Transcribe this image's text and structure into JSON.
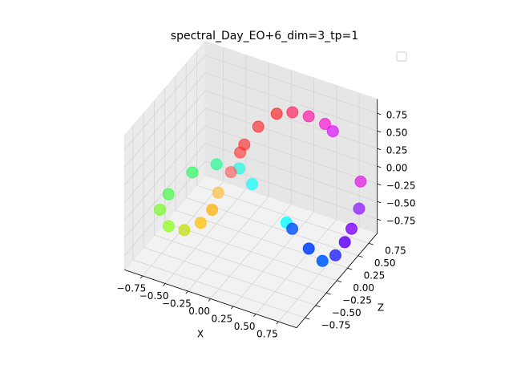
{
  "chart_data": {
    "type": "scatter3d",
    "title": "spectral_Day_EO+6_dim=3_tp=1",
    "xlabel": "X",
    "ylabel": "Z",
    "xlim": [
      -0.95,
      0.95
    ],
    "ylim": [
      -0.95,
      0.95
    ],
    "zlim": [
      -0.95,
      0.95
    ],
    "xticks": [
      {
        "value": -0.75,
        "label": "−0.75"
      },
      {
        "value": -0.5,
        "label": "−0.50"
      },
      {
        "value": -0.25,
        "label": "−0.25"
      },
      {
        "value": 0,
        "label": "0.00"
      },
      0.25,
      {
        "value": 0.5,
        "label": "0.50"
      },
      0.75
    ],
    "yticks": [
      {
        "value": -0.75,
        "label": "−0.75"
      },
      {
        "value": -0.5,
        "label": "−0.50"
      },
      {
        "value": -0.25,
        "label": "−0.25"
      },
      {
        "value": 0,
        "label": "0.00"
      },
      0.25,
      {
        "value": 0.5,
        "label": "0.50"
      },
      0.75
    ],
    "zticks": [
      {
        "value": -0.75,
        "label": "−0.75"
      },
      {
        "value": -0.5,
        "label": "−0.50"
      },
      {
        "value": -0.25,
        "label": "−0.25"
      },
      {
        "value": 0,
        "label": "0.00"
      },
      0.25,
      {
        "value": 0.5,
        "label": "0.50"
      },
      0.75
    ],
    "grid": true,
    "x": [
      -0.26,
      -0.26,
      -0.2,
      -0.09,
      0.06,
      0.24,
      0.42,
      0.53,
      0.93,
      0.96,
      0.97,
      0.99,
      0.98,
      0.93,
      0.78,
      0.55,
      0.44,
      -0.08,
      -0.27,
      -0.52,
      -0.74,
      -0.91,
      -0.91,
      -0.72,
      -0.5,
      -0.32,
      -0.24,
      -0.22,
      -0.22
    ],
    "y": [
      0.3,
      0.4,
      0.6,
      0.8,
      0.85,
      0.85,
      0.85,
      0.8,
      0.6,
      0.5,
      0.3,
      0.1,
      -0.1,
      -0.3,
      -0.3,
      -0.2,
      -0.1,
      0.2,
      0.3,
      0.3,
      0.2,
      0.0,
      -0.2,
      -0.4,
      -0.5,
      -0.5,
      -0.4,
      -0.3,
      0.0
    ],
    "z": [
      0.13,
      0.17,
      0.31,
      0.4,
      0.45,
      0.47,
      0.44,
      0.42,
      0.02,
      -0.28,
      -0.42,
      -0.46,
      -0.51,
      -0.47,
      -0.36,
      -0.25,
      -0.28,
      -0.17,
      -0.1,
      -0.15,
      -0.29,
      -0.53,
      -0.61,
      -0.62,
      -0.51,
      -0.33,
      -0.18,
      0.0,
      0.08
    ],
    "colors": [
      "#ff3030",
      "#ff2020",
      "#ff1010",
      "#ff0000",
      "#ff0040",
      "#ff00a0",
      "#ff00d0",
      "#e000ff",
      "#e020e0",
      "#9020ff",
      "#8000ff",
      "#6000ff",
      "#3030ff",
      "#0060ff",
      "#0040ff",
      "#0050ff",
      "#00ffff",
      "#00ffff",
      "#00ffe0",
      "#00ff80",
      "#00ff40",
      "#20ff20",
      "#60ff00",
      "#80ff00",
      "#c0e000",
      "#ffc000",
      "#ffb000",
      "#ffc040",
      "#ff6060"
    ]
  }
}
